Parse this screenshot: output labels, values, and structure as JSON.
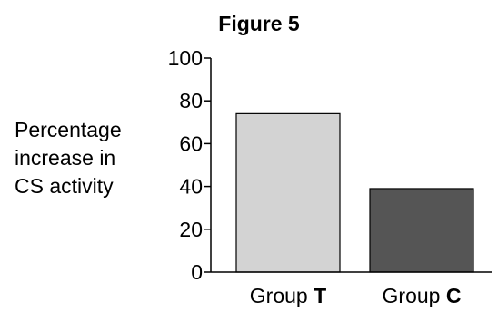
{
  "chart_data": {
    "type": "bar",
    "title": "Figure 5",
    "ylabel_lines": [
      "Percentage",
      "increase in",
      "CS activity"
    ],
    "categories": [
      {
        "prefix": "Group ",
        "letter": "T"
      },
      {
        "prefix": "Group ",
        "letter": "C"
      }
    ],
    "values": [
      74,
      39
    ],
    "ylim": [
      0,
      100
    ],
    "yticks": [
      0,
      20,
      40,
      60,
      80,
      100
    ],
    "grid": false,
    "bar_colors": [
      "#d3d3d3",
      "#555555"
    ]
  }
}
